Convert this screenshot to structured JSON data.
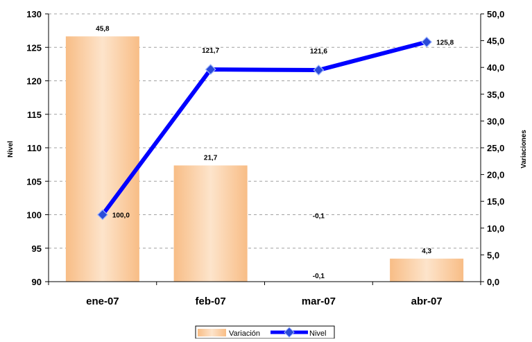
{
  "chart_data": {
    "type": "bar",
    "categories": [
      "ene-07",
      "feb-07",
      "mar-07",
      "abr-07"
    ],
    "series": [
      {
        "name": "Variación",
        "type": "bar",
        "axis": "right",
        "values": [
          45.8,
          21.7,
          -0.1,
          4.3
        ],
        "labels": [
          "45,8",
          "21,7",
          "-0,1",
          "4,3"
        ],
        "color": "#f9c99a"
      },
      {
        "name": "Nivel",
        "type": "line",
        "axis": "left",
        "values": [
          100.0,
          121.7,
          121.6,
          125.8
        ],
        "labels": [
          "100,0",
          "121,7",
          "121,6",
          "125,8"
        ],
        "color": "#0000ff"
      }
    ],
    "extra_labels": [
      "-0,1"
    ],
    "ylabel": "Nivel",
    "y2label": "Variaciones",
    "ylim": [
      90,
      130
    ],
    "y2lim": [
      0,
      50
    ],
    "yticks": [
      "90",
      "95",
      "100",
      "105",
      "110",
      "115",
      "120",
      "125",
      "130"
    ],
    "y2ticks": [
      "0,0",
      "5,0",
      "10,0",
      "15,0",
      "20,0",
      "25,0",
      "30,0",
      "35,0",
      "40,0",
      "45,0",
      "50,0"
    ],
    "grid": true,
    "legend_position": "bottom"
  }
}
